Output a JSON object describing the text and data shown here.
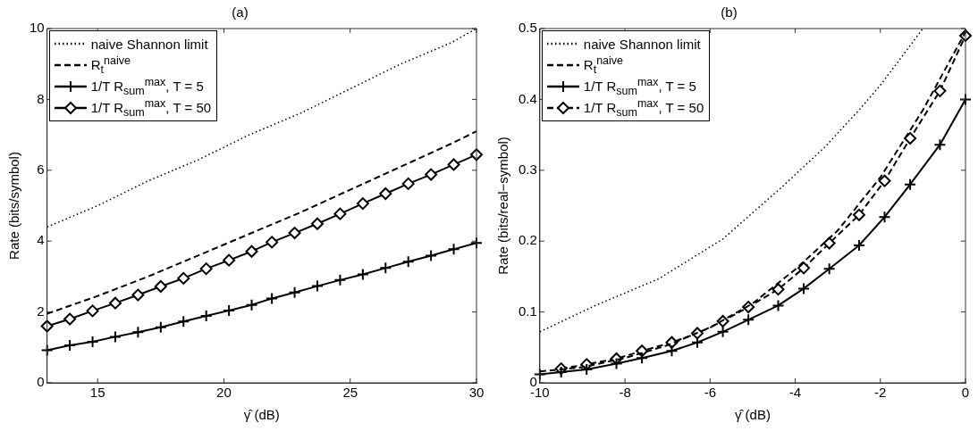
{
  "chart_data": [
    {
      "type": "line",
      "title": "(a)",
      "xlabel": "γ̂ (dB)",
      "ylabel": "Rate (bits/symbol)",
      "xlim": [
        13,
        30
      ],
      "xticks": [
        15,
        20,
        25,
        30
      ],
      "ylim": [
        0,
        10
      ],
      "yticks": [
        0,
        2,
        4,
        6,
        8,
        10
      ],
      "grid": false,
      "legend": "top left",
      "series": [
        {
          "name": "naive Shannon limit",
          "color": "#000000",
          "line_style": "dotted",
          "marker": "none",
          "x": [
            13,
            15,
            17,
            19,
            21,
            23,
            25,
            27,
            29,
            30
          ],
          "values": [
            4.4,
            5.0,
            5.7,
            6.3,
            7.0,
            7.6,
            8.3,
            9.0,
            9.6,
            10.0
          ]
        },
        {
          "name": "R$_{t}$$^{naive}$",
          "color": "#000000",
          "line_style": "dashed",
          "marker": "none",
          "x": [
            13,
            15,
            17,
            19,
            21,
            23,
            25,
            27,
            29,
            30
          ],
          "values": [
            1.95,
            2.45,
            3.0,
            3.6,
            4.2,
            4.8,
            5.45,
            6.1,
            6.75,
            7.1
          ]
        },
        {
          "name": "1/T R$_{sum}$$^{max}$, T = 5",
          "color": "#000000",
          "line_style": "solid",
          "marker": "cross",
          "x": [
            13,
            13.9,
            14.8,
            15.7,
            16.6,
            17.5,
            18.4,
            19.3,
            20.2,
            21.1,
            21.9,
            22.8,
            23.7,
            24.6,
            25.5,
            26.4,
            27.3,
            28.2,
            29.1,
            30
          ],
          "values": [
            0.92,
            1.06,
            1.16,
            1.3,
            1.43,
            1.57,
            1.73,
            1.89,
            2.04,
            2.2,
            2.38,
            2.55,
            2.73,
            2.9,
            3.06,
            3.24,
            3.42,
            3.59,
            3.77,
            3.95
          ]
        },
        {
          "name": "1/T R$_{sum}$$^{max}$, T = 50",
          "color": "#000000",
          "line_style": "solid",
          "marker": "diamond",
          "x": [
            13,
            13.9,
            14.8,
            15.7,
            16.6,
            17.5,
            18.4,
            19.3,
            20.2,
            21.1,
            21.9,
            22.8,
            23.7,
            24.6,
            25.5,
            26.4,
            27.3,
            28.2,
            29.1,
            30
          ],
          "values": [
            1.6,
            1.8,
            2.03,
            2.25,
            2.48,
            2.72,
            2.95,
            3.22,
            3.46,
            3.71,
            3.97,
            4.23,
            4.49,
            4.77,
            5.06,
            5.34,
            5.62,
            5.88,
            6.16,
            6.44
          ]
        }
      ]
    },
    {
      "type": "line",
      "title": "(b)",
      "xlabel": "γ̂ (dB)",
      "ylabel": "Rate (bits/real−symbol)",
      "xlim": [
        -10,
        0
      ],
      "xticks": [
        -10,
        -8,
        -6,
        -4,
        -2,
        0
      ],
      "ylim": [
        0,
        0.5
      ],
      "yticks": [
        0,
        0.1,
        0.2,
        0.3,
        0.4,
        0.5
      ],
      "grid": false,
      "legend": "top left",
      "series": [
        {
          "name": "naive Shannon limit",
          "color": "#000000",
          "line_style": "dotted",
          "marker": "none",
          "x": [
            -10,
            -8.7,
            -7.2,
            -5.7,
            -4.3,
            -3.3,
            -2.5,
            -2,
            -1.5,
            -1
          ],
          "values": [
            0.072,
            0.109,
            0.147,
            0.203,
            0.277,
            0.333,
            0.385,
            0.42,
            0.46,
            0.5
          ]
        },
        {
          "name": "R$_{t}$$^{naive}$",
          "color": "#000000",
          "line_style": "dashed",
          "marker": "none",
          "x": [
            -10,
            -9,
            -8,
            -7,
            -6,
            -5,
            -4,
            -3,
            -2,
            -1,
            0
          ],
          "values": [
            0.016,
            0.022,
            0.035,
            0.053,
            0.078,
            0.112,
            0.16,
            0.215,
            0.29,
            0.385,
            0.495
          ]
        },
        {
          "name": "1/T R$_{sum}$$^{max}$, T = 5",
          "color": "#000000",
          "line_style": "solid",
          "marker": "cross",
          "x": [
            -10,
            -9.5,
            -8.9,
            -8.2,
            -7.6,
            -6.9,
            -6.3,
            -5.7,
            -5.1,
            -4.4,
            -3.8,
            -3.2,
            -2.5,
            -1.9,
            -1.3,
            -0.6,
            0
          ],
          "values": [
            0.012,
            0.015,
            0.019,
            0.027,
            0.035,
            0.045,
            0.057,
            0.072,
            0.089,
            0.109,
            0.133,
            0.161,
            0.194,
            0.234,
            0.28,
            0.336,
            0.4
          ]
        },
        {
          "name": "1/T R$_{sum}$$^{max}$, T = 50",
          "color": "#000000",
          "line_style": "dashed",
          "marker": "diamond",
          "x": [
            -9.5,
            -8.9,
            -8.2,
            -7.6,
            -6.9,
            -6.3,
            -5.7,
            -5.1,
            -4.4,
            -3.8,
            -3.2,
            -2.5,
            -1.9,
            -1.3,
            -0.6,
            0
          ],
          "values": [
            0.02,
            0.026,
            0.034,
            0.045,
            0.057,
            0.07,
            0.087,
            0.107,
            0.132,
            0.162,
            0.197,
            0.237,
            0.285,
            0.345,
            0.412,
            0.49
          ]
        }
      ]
    }
  ]
}
